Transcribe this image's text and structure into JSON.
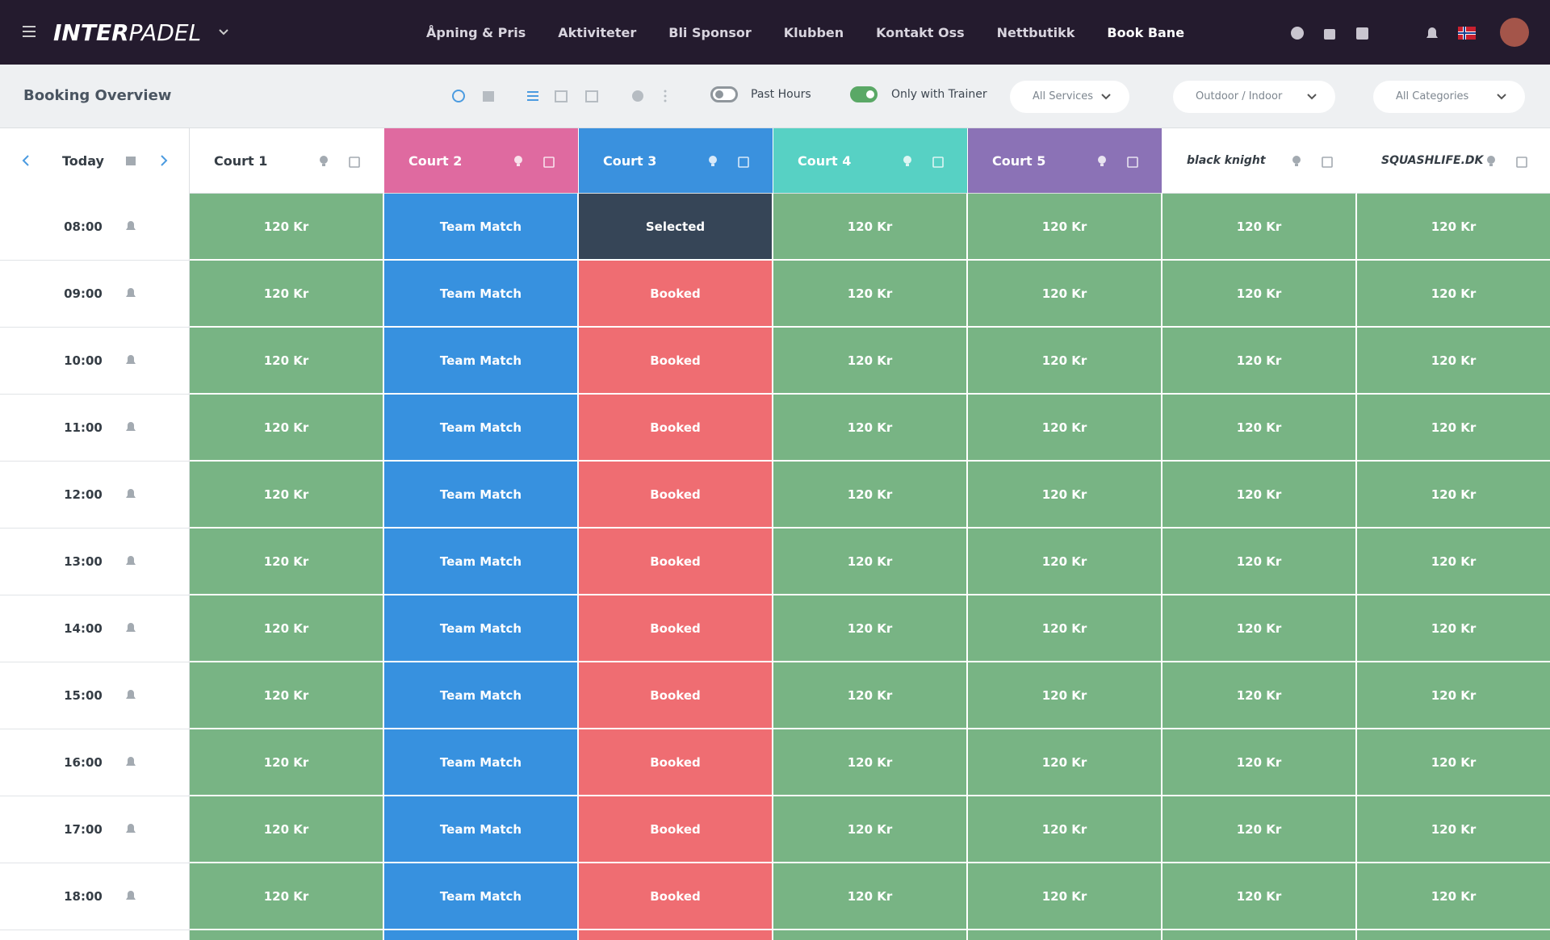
{
  "header": {
    "logo_bold": "INTER",
    "logo_light": "PADEL",
    "nav": [
      "Åpning & Pris",
      "Aktiviteter",
      "Bli Sponsor",
      "Klubben",
      "Kontakt Oss",
      "Nettbutikk",
      "Book Bane"
    ]
  },
  "toolbar": {
    "title": "Booking Overview",
    "toggles": [
      {
        "label": "Past Hours",
        "on": false
      },
      {
        "label": "Only with Trainer",
        "on": true
      }
    ],
    "dropdowns": [
      "All Services",
      "Outdoor / Indoor",
      "All Categories"
    ]
  },
  "table": {
    "today": "Today",
    "courts": [
      {
        "name": "Court 1",
        "color": "#ffffff"
      },
      {
        "name": "Court 2",
        "color": "#df6aa0"
      },
      {
        "name": "Court 3",
        "color": "#3a91de"
      },
      {
        "name": "Court 4",
        "color": "#57d1c4"
      },
      {
        "name": "Court 5",
        "color": "#8b72b6"
      },
      {
        "name": "black knight",
        "color": "#ffffff"
      },
      {
        "name": "SQUASHLIFE.DK",
        "color": "#ffffff"
      }
    ],
    "rows": [
      {
        "time": "08:00",
        "cells": [
          "120 Kr",
          "Team Match",
          "Selected",
          "120 Kr",
          "120 Kr",
          "120 Kr",
          "120 Kr"
        ],
        "colors": [
          "#78b484",
          "#3791df",
          "#364557",
          "#78b484",
          "#78b484",
          "#78b484",
          "#78b484"
        ]
      },
      {
        "time": "09:00",
        "cells": [
          "120 Kr",
          "Team Match",
          "Booked",
          "120 Kr",
          "120 Kr",
          "120 Kr",
          "120 Kr"
        ],
        "colors": [
          "#78b484",
          "#3791df",
          "#ef6d72",
          "#78b484",
          "#78b484",
          "#78b484",
          "#78b484"
        ]
      },
      {
        "time": "10:00",
        "cells": [
          "120 Kr",
          "Team Match",
          "Booked",
          "120 Kr",
          "120 Kr",
          "120 Kr",
          "120 Kr"
        ],
        "colors": [
          "#78b484",
          "#3791df",
          "#ef6d72",
          "#78b484",
          "#78b484",
          "#78b484",
          "#78b484"
        ]
      },
      {
        "time": "11:00",
        "cells": [
          "120 Kr",
          "Team Match",
          "Booked",
          "120 Kr",
          "120 Kr",
          "120 Kr",
          "120 Kr"
        ],
        "colors": [
          "#78b484",
          "#3791df",
          "#ef6d72",
          "#78b484",
          "#78b484",
          "#78b484",
          "#78b484"
        ]
      },
      {
        "time": "12:00",
        "cells": [
          "120 Kr",
          "Team Match",
          "Booked",
          "120 Kr",
          "120 Kr",
          "120 Kr",
          "120 Kr"
        ],
        "colors": [
          "#78b484",
          "#3791df",
          "#ef6d72",
          "#78b484",
          "#78b484",
          "#78b484",
          "#78b484"
        ]
      },
      {
        "time": "13:00",
        "cells": [
          "120 Kr",
          "Team Match",
          "Booked",
          "120 Kr",
          "120 Kr",
          "120 Kr",
          "120 Kr"
        ],
        "colors": [
          "#78b484",
          "#3791df",
          "#ef6d72",
          "#78b484",
          "#78b484",
          "#78b484",
          "#78b484"
        ]
      },
      {
        "time": "14:00",
        "cells": [
          "120 Kr",
          "Team Match",
          "Booked",
          "120 Kr",
          "120 Kr",
          "120 Kr",
          "120 Kr"
        ],
        "colors": [
          "#78b484",
          "#3791df",
          "#ef6d72",
          "#78b484",
          "#78b484",
          "#78b484",
          "#78b484"
        ]
      },
      {
        "time": "15:00",
        "cells": [
          "120 Kr",
          "Team Match",
          "Booked",
          "120 Kr",
          "120 Kr",
          "120 Kr",
          "120 Kr"
        ],
        "colors": [
          "#78b484",
          "#3791df",
          "#ef6d72",
          "#78b484",
          "#78b484",
          "#78b484",
          "#78b484"
        ]
      },
      {
        "time": "16:00",
        "cells": [
          "120 Kr",
          "Team Match",
          "Booked",
          "120 Kr",
          "120 Kr",
          "120 Kr",
          "120 Kr"
        ],
        "colors": [
          "#78b484",
          "#3791df",
          "#ef6d72",
          "#78b484",
          "#78b484",
          "#78b484",
          "#78b484"
        ]
      },
      {
        "time": "17:00",
        "cells": [
          "120 Kr",
          "Team Match",
          "Booked",
          "120 Kr",
          "120 Kr",
          "120 Kr",
          "120 Kr"
        ],
        "colors": [
          "#78b484",
          "#3791df",
          "#ef6d72",
          "#78b484",
          "#78b484",
          "#78b484",
          "#78b484"
        ]
      },
      {
        "time": "18:00",
        "cells": [
          "120 Kr",
          "Team Match",
          "Booked",
          "120 Kr",
          "120 Kr",
          "120 Kr",
          "120 Kr"
        ],
        "colors": [
          "#78b484",
          "#3791df",
          "#ef6d72",
          "#78b484",
          "#78b484",
          "#78b484",
          "#78b484"
        ]
      }
    ]
  }
}
